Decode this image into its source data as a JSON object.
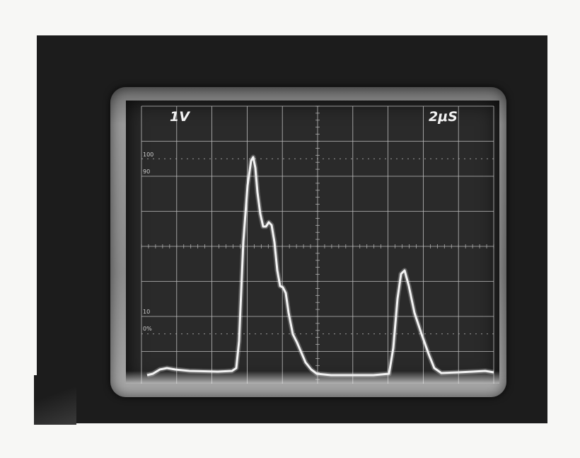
{
  "scope": {
    "volts_per_div": "1V",
    "time_per_div": "2μS",
    "scale_marks": [
      "100",
      "90",
      "10",
      "0%"
    ]
  },
  "colors": {
    "trace": "#f4f4f4",
    "grid": "#bdbdbd",
    "screen": "#2a2a2a",
    "background": "#1c1c1c"
  }
}
